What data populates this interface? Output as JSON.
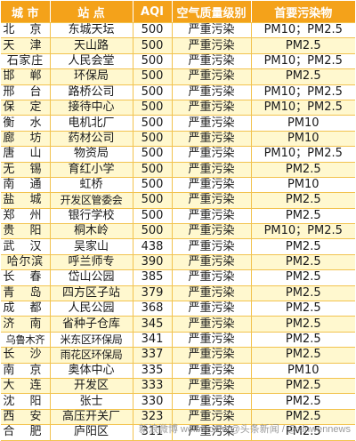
{
  "headers": [
    "城  市",
    "站  点",
    "AQI",
    "空气质量级别",
    "首要污染物"
  ],
  "rows": [
    [
      "北  京",
      "东城天坛",
      "500",
      "严重污染",
      "PM10；PM2.5"
    ],
    [
      "天  津",
      "天山路",
      "500",
      "严重污染",
      "PM2.5"
    ],
    [
      "石家庄",
      "人民会堂",
      "500",
      "严重污染",
      "PM10；PM2.5"
    ],
    [
      "邯  郸",
      "环保局",
      "500",
      "严重污染",
      "PM2.5"
    ],
    [
      "邢  台",
      "路桥公司",
      "500",
      "严重污染",
      "PM10；PM2.5"
    ],
    [
      "保  定",
      "接待中心",
      "500",
      "严重污染",
      "PM10；PM2.5"
    ],
    [
      "衡  水",
      "电机北厂",
      "500",
      "严重污染",
      "PM10"
    ],
    [
      "廊  坊",
      "药材公司",
      "500",
      "严重污染",
      "PM10"
    ],
    [
      "唐  山",
      "物资局",
      "500",
      "严重污染",
      "PM10；PM2.5"
    ],
    [
      "无  锡",
      "育红小学",
      "500",
      "严重污染",
      "PM2.5"
    ],
    [
      "南  通",
      "虹桥",
      "500",
      "严重污染",
      "PM10"
    ],
    [
      "盐  城",
      "开发区管委会",
      "500",
      "严重污染",
      "PM2.5"
    ],
    [
      "郑  州",
      "银行学校",
      "500",
      "严重污染",
      "PM2.5"
    ],
    [
      "贵  阳",
      "桐木岭",
      "500",
      "严重污染",
      "PM10；PM2.5"
    ],
    [
      "武  汉",
      "吴家山",
      "438",
      "严重污染",
      "PM2.5"
    ],
    [
      "哈尔滨",
      "呼兰师专",
      "390",
      "严重污染",
      "PM2.5"
    ],
    [
      "长  春",
      "岱山公园",
      "385",
      "严重污染",
      "PM2.5"
    ],
    [
      "青  岛",
      "四方区子站",
      "379",
      "严重污染",
      "PM2.5"
    ],
    [
      "成  都",
      "人民公园",
      "368",
      "严重污染",
      "PM2.5"
    ],
    [
      "济  南",
      "省种子仓库",
      "345",
      "严重污染",
      "PM2.5"
    ],
    [
      "乌鲁木齐",
      "米东区环保局",
      "341",
      "严重污染",
      "PM2.5"
    ],
    [
      "长  沙",
      "雨花区环保局",
      "337",
      "严重污染",
      "PM2.5"
    ],
    [
      "南  京",
      "奥体中心",
      "335",
      "严重污染",
      "PM10"
    ],
    [
      "大  连",
      "开发区",
      "333",
      "严重污染",
      "PM2.5"
    ],
    [
      "沈  阳",
      "张士",
      "330",
      "严重污染",
      "PM2.5"
    ],
    [
      "西  安",
      "高压开关厂",
      "323",
      "严重污染",
      "PM2.5"
    ],
    [
      "合  肥",
      "庐阳区",
      "311",
      "严重污染",
      "PM2.5"
    ]
  ],
  "watermark": "新浪微博 weibo.com/@头条新闻 / @xinwennews",
  "colors": {
    "header_bg": "#f4a21a",
    "header_text": "#ffffff",
    "stripe": "#fff8cf",
    "grid": "#f2c34f"
  }
}
